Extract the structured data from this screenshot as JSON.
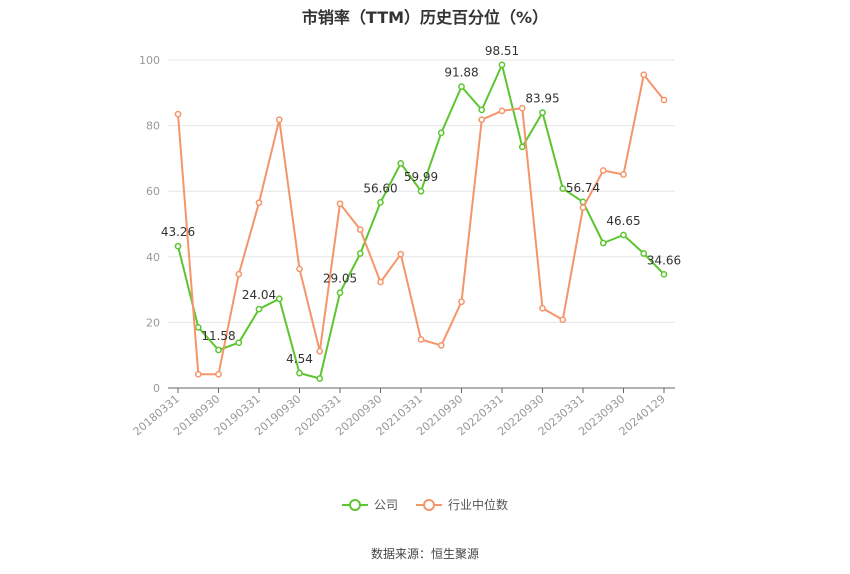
{
  "chart_data": {
    "type": "line",
    "title": "市销率（TTM）历史百分位（%）",
    "source": "数据来源：恒生聚源",
    "ylim": [
      0,
      100
    ],
    "yticks": [
      0,
      20,
      40,
      60,
      80,
      100
    ],
    "grid": true,
    "legend_position": "bottom",
    "x_tick_labels": [
      "20180331",
      "20180930",
      "20190331",
      "20190930",
      "20200331",
      "20200930",
      "20210331",
      "20210930",
      "20220331",
      "20220930",
      "20230331",
      "20230930",
      "20240129"
    ],
    "x_tick_positions": [
      0,
      2,
      4,
      6,
      8,
      10,
      12,
      14,
      16,
      18,
      20,
      22,
      24
    ],
    "series": [
      {
        "name": "公司",
        "color": "#5cc52f",
        "values": [
          43.26,
          18.5,
          11.58,
          13.8,
          24.04,
          27.2,
          4.54,
          2.9,
          29.05,
          41.0,
          56.6,
          68.5,
          59.99,
          77.8,
          91.88,
          84.8,
          98.51,
          73.5,
          83.95,
          60.8,
          56.74,
          44.2,
          46.65,
          41.0,
          34.66
        ],
        "labeled_points": [
          {
            "index": 0,
            "text": "43.26"
          },
          {
            "index": 2,
            "text": "11.58"
          },
          {
            "index": 4,
            "text": "24.04"
          },
          {
            "index": 6,
            "text": "4.54"
          },
          {
            "index": 8,
            "text": "29.05"
          },
          {
            "index": 10,
            "text": "56.60"
          },
          {
            "index": 12,
            "text": "59.99"
          },
          {
            "index": 14,
            "text": "91.88"
          },
          {
            "index": 16,
            "text": "98.51"
          },
          {
            "index": 18,
            "text": "83.95"
          },
          {
            "index": 20,
            "text": "56.74"
          },
          {
            "index": 22,
            "text": "46.65"
          },
          {
            "index": 24,
            "text": "34.66"
          }
        ]
      },
      {
        "name": "行业中位数",
        "color": "#f5956a",
        "values": [
          83.5,
          4.2,
          4.2,
          34.7,
          56.5,
          81.8,
          36.3,
          11.2,
          56.2,
          48.3,
          32.3,
          40.8,
          14.8,
          13.0,
          26.3,
          81.8,
          84.5,
          85.3,
          24.3,
          20.8,
          55.0,
          66.3,
          65.1,
          95.5,
          87.8
        ]
      }
    ]
  }
}
